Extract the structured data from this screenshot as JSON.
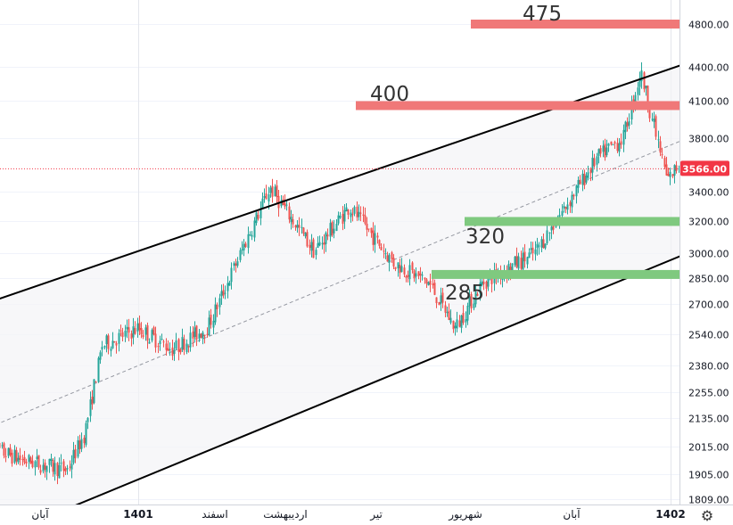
{
  "chart_data": {
    "type": "candlestick",
    "title": "",
    "xlabel": "",
    "ylabel": "",
    "y_scale": "log",
    "ylim": [
      1809,
      4980
    ],
    "y_ticks": [
      {
        "value": 4800,
        "label": "4800.00"
      },
      {
        "value": 4400,
        "label": "4400.00"
      },
      {
        "value": 4100,
        "label": "4100.00"
      },
      {
        "value": 3800,
        "label": "3800.00"
      },
      {
        "value": 3400,
        "label": "3400.00"
      },
      {
        "value": 3200,
        "label": "3200.00"
      },
      {
        "value": 3000,
        "label": "3000.00"
      },
      {
        "value": 2850,
        "label": "2850.00"
      },
      {
        "value": 2700,
        "label": "2700.00"
      },
      {
        "value": 2540,
        "label": "2540.00"
      },
      {
        "value": 2380,
        "label": "2380.00"
      },
      {
        "value": 2255,
        "label": "2255.00"
      },
      {
        "value": 2135,
        "label": "2135.00"
      },
      {
        "value": 2015,
        "label": "2015.00"
      },
      {
        "value": 1905,
        "label": "1905.00"
      },
      {
        "value": 1809,
        "label": "1809.00"
      }
    ],
    "x_ticks": [
      {
        "label": "آبان",
        "bold": false
      },
      {
        "label": "1401",
        "bold": true
      },
      {
        "label": "اسفند",
        "bold": false
      },
      {
        "label": "اردیبهشت",
        "bold": false
      },
      {
        "label": "تیر",
        "bold": false
      },
      {
        "label": "شهریور",
        "bold": false
      },
      {
        "label": "آبان",
        "bold": false
      },
      {
        "label": "1402",
        "bold": true
      }
    ],
    "grid": true,
    "last_price": {
      "value": 3566,
      "label": "3566.00",
      "color": "#f23645"
    },
    "colors": {
      "up": "#26a69a",
      "down": "#ef5350",
      "channel": "#000000",
      "median": "#9598a1",
      "resistance": "#f07878",
      "support": "#7fc97f"
    },
    "levels": [
      {
        "value": 4800,
        "label": "475",
        "kind": "resistance"
      },
      {
        "value": 4060,
        "label": "400",
        "kind": "resistance"
      },
      {
        "value": 3200,
        "label": "320",
        "kind": "support"
      },
      {
        "value": 2870,
        "label": "285",
        "kind": "support"
      }
    ],
    "channel": {
      "upper": [
        [
          1.0,
          2990
        ],
        [
          10.0,
          5230
        ]
      ],
      "lower": [
        [
          1.0,
          1868
        ],
        [
          10.0,
          3660
        ]
      ],
      "median": [
        [
          1.0,
          2360
        ],
        [
          10.0,
          4640
        ]
      ]
    },
    "anchors": [
      [
        -0.6,
        2015
      ],
      [
        -0.2,
        1960
      ],
      [
        0.3,
        1920
      ],
      [
        0.5,
        2070
      ],
      [
        0.7,
        2480
      ],
      [
        1.1,
        2570
      ],
      [
        1.5,
        2460
      ],
      [
        1.9,
        2580
      ],
      [
        2.2,
        2920
      ],
      [
        2.6,
        3430
      ],
      [
        3.1,
        3010
      ],
      [
        3.5,
        3300
      ],
      [
        4.0,
        2940
      ],
      [
        4.4,
        2820
      ],
      [
        4.7,
        2570
      ],
      [
        5.0,
        2820
      ],
      [
        5.6,
        3000
      ],
      [
        6.0,
        3350
      ],
      [
        6.3,
        3640
      ],
      [
        6.6,
        3800
      ],
      [
        6.8,
        4350
      ],
      [
        7.1,
        3480
      ],
      [
        7.5,
        3850
      ],
      [
        7.9,
        3400
      ],
      [
        8.3,
        3520
      ],
      [
        8.8,
        3450
      ],
      [
        9.2,
        3570
      ],
      [
        9.6,
        3400
      ],
      [
        10.0,
        3080
      ],
      [
        10.3,
        2840
      ],
      [
        10.6,
        3000
      ],
      [
        10.9,
        3450
      ],
      [
        11.2,
        3566
      ]
    ]
  }
}
